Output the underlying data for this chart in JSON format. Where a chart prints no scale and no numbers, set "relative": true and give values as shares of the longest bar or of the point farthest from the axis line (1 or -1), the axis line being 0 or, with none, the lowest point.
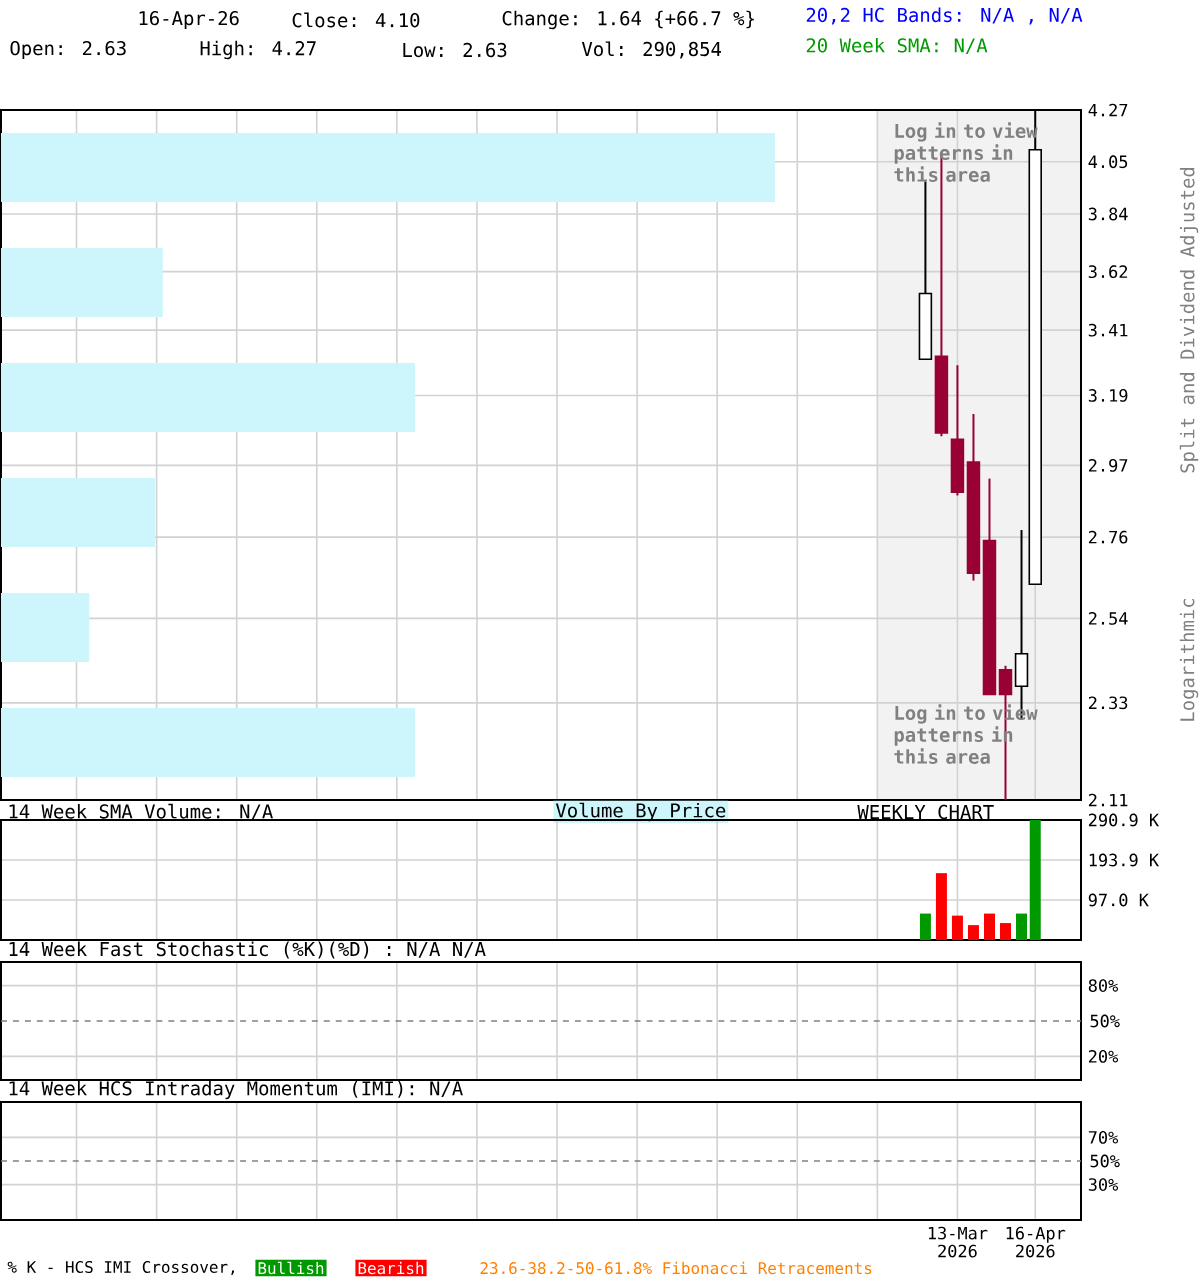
{
  "chart_data": [
    {
      "type": "candlestick",
      "log": true,
      "grid": true,
      "tick_labels": "y",
      "x": [
        "2026-02-27",
        "2026-03-06",
        "2026-03-13",
        "2026-03-20",
        "2026-03-27",
        "2026-04-03",
        "2026-04-10",
        "2026-04-16"
      ],
      "ohlc": [
        [
          3.31,
          3.97,
          3.31,
          3.54
        ],
        [
          3.32,
          4.09,
          3.06,
          3.07
        ],
        [
          3.05,
          3.29,
          2.88,
          2.89
        ],
        [
          2.98,
          3.13,
          2.64,
          2.66
        ],
        [
          2.75,
          2.93,
          2.35,
          2.35
        ],
        [
          2.41,
          2.42,
          2.11,
          2.35
        ],
        [
          2.37,
          2.78,
          2.29,
          2.45
        ],
        [
          2.63,
          4.27,
          2.63,
          4.1
        ]
      ],
      "colors": [
        "#ffffff",
        "#990033",
        "#990033",
        "#990033",
        "#990033",
        "#990033",
        "#ffffff",
        "#ffffff"
      ],
      "xlim": [
        "2025-01-19",
        "2026-05-06"
      ],
      "xticks": [
        {
          "value": "2025-02-21",
          "label": null
        },
        {
          "value": "2025-03-28",
          "label": null
        },
        {
          "value": "2025-05-02",
          "label": null
        },
        {
          "value": "2025-06-06",
          "label": null
        },
        {
          "value": "2025-07-11",
          "label": null
        },
        {
          "value": "2025-08-15",
          "label": null
        },
        {
          "value": "2025-09-19",
          "label": null
        },
        {
          "value": "2025-10-24",
          "label": null
        },
        {
          "value": "2025-11-28",
          "label": null
        },
        {
          "value": "2026-01-02",
          "label": null
        },
        {
          "value": "2026-02-06",
          "label": null
        },
        {
          "value": "2026-03-13",
          "label": null
        },
        {
          "value": "2026-04-16",
          "label": null
        }
      ],
      "ylim": [
        2.11,
        4.27
      ],
      "yticks": [
        2.11,
        2.33,
        2.54,
        2.76,
        2.97,
        3.19,
        3.41,
        3.62,
        3.84,
        4.05,
        4.27
      ],
      "bands": [
        {
          "axis": "x",
          "from": "2026-02-06",
          "to": "2026-05-06",
          "color": "#f2f2f2"
        }
      ],
      "annotations": [
        "16-Apr-26",
        "Close: 4.10",
        "Change: 1.64 {+66.7 %}",
        "Open: 2.63",
        "High: 4.27",
        "Low: 2.63",
        "Vol: 290,854",
        "20,2 HC Bands: N/A , N/A",
        "20 Week SMA: N/A",
        "Log in to view patterns in this area",
        "Log in to view patterns in this area",
        "Split and Dividend Adjusted",
        "Logarithmic",
        "WEEKLY CHART"
      ]
    },
    {
      "type": "bar",
      "orientation": "horizontal",
      "relative": true,
      "title": "Volume By Price",
      "color": "#ccf5fc",
      "categories": [
        null,
        null,
        null,
        null,
        null,
        null
      ],
      "values": [
        1,
        0.209,
        0.535,
        0.199,
        0.114,
        0.535
      ]
    },
    {
      "type": "bar",
      "title": "14 Week SMA Volume: N/A",
      "grid": true,
      "tick_labels": "y",
      "x": [
        "2026-02-27",
        "2026-03-06",
        "2026-03-13",
        "2026-03-20",
        "2026-03-27",
        "2026-04-03",
        "2026-04-10",
        "2026-04-16"
      ],
      "values": [
        64,
        162,
        59,
        36,
        64,
        41,
        64,
        290.9
      ],
      "colors": [
        "#009900",
        "#ff0000",
        "#ff0000",
        "#ff0000",
        "#ff0000",
        "#ff0000",
        "#009900",
        "#009900"
      ],
      "xlim": [
        "2025-01-19",
        "2026-05-06"
      ],
      "xticks": [
        {
          "value": "2025-02-21",
          "label": null
        },
        {
          "value": "2025-03-28",
          "label": null
        },
        {
          "value": "2025-05-02",
          "label": null
        },
        {
          "value": "2025-06-06",
          "label": null
        },
        {
          "value": "2025-07-11",
          "label": null
        },
        {
          "value": "2025-08-15",
          "label": null
        },
        {
          "value": "2025-09-19",
          "label": null
        },
        {
          "value": "2025-10-24",
          "label": null
        },
        {
          "value": "2025-11-28",
          "label": null
        },
        {
          "value": "2026-01-02",
          "label": null
        },
        {
          "value": "2026-02-06",
          "label": null
        },
        {
          "value": "2026-03-13",
          "label": null
        },
        {
          "value": "2026-04-16",
          "label": null
        }
      ],
      "ylim": [
        0,
        290.9
      ],
      "yticks": [
        {
          "value": 97.0,
          "label": "97.0 K"
        },
        {
          "value": 193.9,
          "label": "193.9 K"
        },
        {
          "value": 290.9,
          "label": "290.9 K"
        }
      ]
    },
    {
      "type": "line",
      "title": "14 Week Fast Stochastic (%K)(%D) : N/A  N/A",
      "grid": true,
      "tick_labels": "y",
      "xlim": [
        "2025-01-19",
        "2026-05-06"
      ],
      "xticks": [
        {
          "value": "2025-02-21",
          "label": null
        },
        {
          "value": "2025-03-28",
          "label": null
        },
        {
          "value": "2025-05-02",
          "label": null
        },
        {
          "value": "2025-06-06",
          "label": null
        },
        {
          "value": "2025-07-11",
          "label": null
        },
        {
          "value": "2025-08-15",
          "label": null
        },
        {
          "value": "2025-09-19",
          "label": null
        },
        {
          "value": "2025-10-24",
          "label": null
        },
        {
          "value": "2025-11-28",
          "label": null
        },
        {
          "value": "2026-01-02",
          "label": null
        },
        {
          "value": "2026-02-06",
          "label": null
        },
        {
          "value": "2026-03-13",
          "label": null
        },
        {
          "value": "2026-04-16",
          "label": null
        }
      ],
      "ylim": [
        0,
        100
      ],
      "yticks": [
        {
          "value": 20,
          "label": "20%"
        },
        {
          "value": 80,
          "label": "80%"
        }
      ],
      "ref_lines": [
        {
          "axis": "y",
          "value": 50,
          "label": "50%",
          "line_style": "dashed"
        }
      ]
    },
    {
      "type": "line",
      "title": "14 Week HCS Intraday Momentum (IMI): N/A",
      "grid": true,
      "xlim": [
        "2025-01-19",
        "2026-05-06"
      ],
      "xticks": [
        {
          "value": "2025-02-21",
          "label": null
        },
        {
          "value": "2025-03-28",
          "label": null
        },
        {
          "value": "2025-05-02",
          "label": null
        },
        {
          "value": "2025-06-06",
          "label": null
        },
        {
          "value": "2025-07-11",
          "label": null
        },
        {
          "value": "2025-08-15",
          "label": null
        },
        {
          "value": "2025-09-19",
          "label": null
        },
        {
          "value": "2025-10-24",
          "label": null
        },
        {
          "value": "2025-11-28",
          "label": null
        },
        {
          "value": "2026-01-02",
          "label": null
        },
        {
          "value": "2026-02-06",
          "label": null
        },
        {
          "value": "2026-03-13",
          "label": "13-Mar 2026"
        },
        {
          "value": "2026-04-16",
          "label": "16-Apr 2026"
        }
      ],
      "ylim": [
        0,
        100
      ],
      "yticks": [
        {
          "value": 30,
          "label": "30%"
        },
        {
          "value": 70,
          "label": "70%"
        }
      ],
      "ref_lines": [
        {
          "axis": "y",
          "value": 50,
          "label": "50%",
          "line_style": "dashed"
        }
      ],
      "annotations": [
        "% K - HCS IMI Crossover,",
        "Bullish",
        "Bearish",
        "23.6-38.2-50-61.8% Fibonacci Retracements"
      ]
    }
  ]
}
